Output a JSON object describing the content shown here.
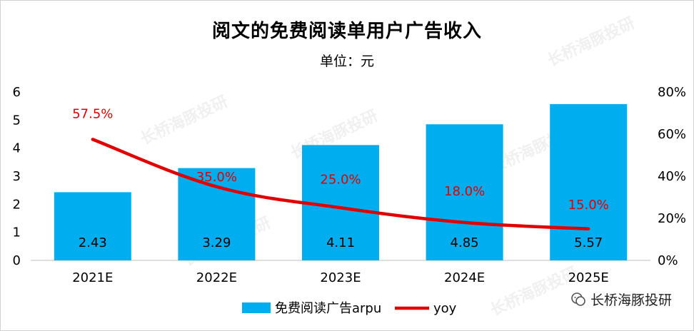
{
  "chart_data": {
    "type": "bar",
    "title": "阅文的免费阅读单用户广告收入",
    "subtitle": "单位：元",
    "categories": [
      "2021E",
      "2022E",
      "2023E",
      "2024E",
      "2025E"
    ],
    "series": [
      {
        "name": "免费阅读广告arpu",
        "type": "bar",
        "axis": "left",
        "color": "#00AEEF",
        "values": [
          2.43,
          3.29,
          4.11,
          4.85,
          5.57
        ],
        "labels": [
          "2.43",
          "3.29",
          "4.11",
          "4.85",
          "5.57"
        ]
      },
      {
        "name": "yoy",
        "type": "line",
        "axis": "right",
        "color": "#E00000",
        "values": [
          57.5,
          35.0,
          25.0,
          18.0,
          15.0
        ],
        "labels": [
          "57.5%",
          "35.0%",
          "25.0%",
          "18.0%",
          "15.0%"
        ]
      }
    ],
    "ylim_left": [
      0,
      6
    ],
    "yticks_left": [
      "0",
      "1",
      "2",
      "3",
      "4",
      "5",
      "6"
    ],
    "ylim_right": [
      0,
      80
    ],
    "yticks_right": [
      "0%",
      "20%",
      "40%",
      "60%",
      "80%"
    ],
    "legend": "bottom-center",
    "grid": false
  },
  "watermark": "长桥海豚投研",
  "brand": {
    "icon": "wechat-icon",
    "text": "长桥海豚投研"
  }
}
